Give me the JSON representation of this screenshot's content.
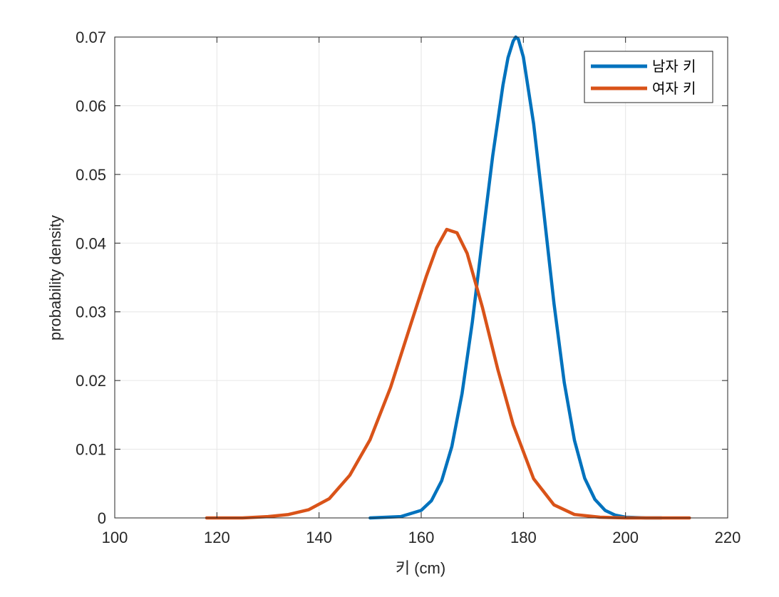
{
  "chart_data": {
    "type": "line",
    "title": "",
    "xlabel": "키 (cm)",
    "ylabel": "probability density",
    "xlim": [
      100,
      220
    ],
    "ylim": [
      0,
      0.07
    ],
    "xticks": [
      100,
      120,
      140,
      160,
      180,
      200,
      220
    ],
    "yticks": [
      0,
      0.01,
      0.02,
      0.03,
      0.04,
      0.05,
      0.06,
      0.07
    ],
    "xtick_labels": [
      "100",
      "120",
      "140",
      "160",
      "180",
      "200",
      "220"
    ],
    "ytick_labels": [
      "0",
      "0.01",
      "0.02",
      "0.03",
      "0.04",
      "0.05",
      "0.06",
      "0.07"
    ],
    "grid": true,
    "legend_position": "top-right",
    "series": [
      {
        "name": "남자 키",
        "color": "#0072BD",
        "x": [
          150,
          156,
          160,
          162,
          164,
          166,
          168,
          170,
          172,
          174,
          176,
          177,
          178,
          178.5,
          179,
          180,
          182,
          184,
          186,
          188,
          190,
          192,
          194,
          196,
          198,
          200,
          204,
          207
        ],
        "y": [
          0.0,
          0.0002,
          0.0011,
          0.0025,
          0.0054,
          0.0104,
          0.0181,
          0.0285,
          0.0407,
          0.0527,
          0.063,
          0.067,
          0.0694,
          0.07,
          0.0697,
          0.0671,
          0.0574,
          0.0445,
          0.0312,
          0.0197,
          0.0113,
          0.0058,
          0.0027,
          0.0011,
          0.0004,
          0.0001,
          0.0,
          0.0
        ]
      },
      {
        "name": "여자 키",
        "color": "#D95319",
        "x": [
          118,
          125,
          130,
          134,
          138,
          142,
          146,
          150,
          154,
          158,
          161,
          163,
          165,
          167,
          169,
          172,
          175,
          178,
          182,
          186,
          190,
          195,
          200,
          205,
          212.5
        ],
        "y": [
          0.0,
          0.0,
          0.0002,
          0.0005,
          0.0012,
          0.0028,
          0.0062,
          0.0114,
          0.019,
          0.0283,
          0.0352,
          0.0393,
          0.042,
          0.0415,
          0.0385,
          0.0306,
          0.0216,
          0.0136,
          0.0057,
          0.0019,
          0.0005,
          0.0001,
          0.0,
          0.0,
          0.0
        ]
      }
    ]
  }
}
